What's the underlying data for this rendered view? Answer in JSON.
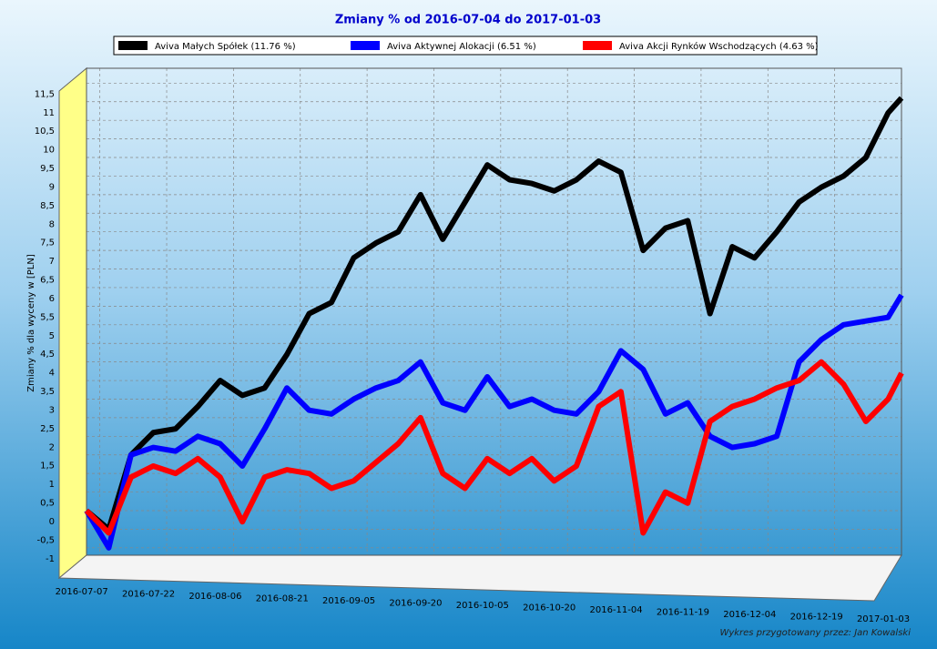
{
  "chart_data": {
    "type": "line",
    "title": "Zmiany % od 2016-07-04 do 2017-01-03",
    "y_label": "Zmiany % dla wyceny w [PLN]",
    "footnote": "Wykres przygotowany przez: Jan Kowalski",
    "x": [
      "2016-07-04",
      "2016-07-09",
      "2016-07-14",
      "2016-07-19",
      "2016-07-24",
      "2016-07-29",
      "2016-08-03",
      "2016-08-08",
      "2016-08-13",
      "2016-08-18",
      "2016-08-23",
      "2016-08-28",
      "2016-09-02",
      "2016-09-07",
      "2016-09-12",
      "2016-09-17",
      "2016-09-22",
      "2016-09-27",
      "2016-10-02",
      "2016-10-07",
      "2016-10-12",
      "2016-10-17",
      "2016-10-22",
      "2016-10-27",
      "2016-11-01",
      "2016-11-06",
      "2016-11-11",
      "2016-11-16",
      "2016-11-21",
      "2016-11-26",
      "2016-12-01",
      "2016-12-06",
      "2016-12-11",
      "2016-12-16",
      "2016-12-21",
      "2016-12-26",
      "2016-12-31",
      "2017-01-03"
    ],
    "series": [
      {
        "name": "Aviva Małych Spółek (11.76 %)",
        "color": "#000000",
        "values": [
          0,
          -0.5,
          1.5,
          2.1,
          2.2,
          2.8,
          3.5,
          3.1,
          3.3,
          4.2,
          5.3,
          5.6,
          6.8,
          7.2,
          7.5,
          8.5,
          7.3,
          8.3,
          9.3,
          8.9,
          8.8,
          8.6,
          8.9,
          9.4,
          9.1,
          7.0,
          7.6,
          7.8,
          5.3,
          7.1,
          6.8,
          7.5,
          8.3,
          8.7,
          9.0,
          9.5,
          10.7,
          11.1
        ]
      },
      {
        "name": "Aviva Aktywnej Alokacji (6.51 %)",
        "color": "#0000ff",
        "values": [
          0,
          -1,
          1.5,
          1.7,
          1.6,
          2.0,
          1.8,
          1.2,
          2.2,
          3.3,
          2.7,
          2.6,
          3.0,
          3.3,
          3.5,
          4.0,
          2.9,
          2.7,
          3.6,
          2.8,
          3.0,
          2.7,
          2.6,
          3.2,
          4.3,
          3.8,
          2.6,
          2.9,
          2.0,
          1.7,
          1.8,
          2.0,
          4.0,
          4.6,
          5.0,
          5.1,
          5.2,
          5.8
        ]
      },
      {
        "name": "Aviva Akcji Rynków Wschodzących (4.63 %)",
        "color": "#ff0000",
        "values": [
          0,
          -0.6,
          0.9,
          1.2,
          1.0,
          1.4,
          0.9,
          -0.3,
          0.9,
          1.1,
          1.0,
          0.6,
          0.8,
          1.3,
          1.8,
          2.5,
          1.0,
          0.6,
          1.4,
          1.0,
          1.4,
          0.8,
          1.2,
          2.8,
          3.2,
          -0.6,
          0.5,
          0.2,
          2.4,
          2.8,
          3.0,
          3.3,
          3.5,
          4.0,
          3.4,
          2.4,
          3.0,
          3.7
        ]
      }
    ],
    "xlim": [
      "2016-07-04",
      "2017-01-03"
    ],
    "xticks": [
      "2016-07-07",
      "2016-07-22",
      "2016-08-06",
      "2016-08-21",
      "2016-09-05",
      "2016-09-20",
      "2016-10-05",
      "2016-10-20",
      "2016-11-04",
      "2016-11-19",
      "2016-12-04",
      "2016-12-19",
      "2017-01-03"
    ],
    "ylim": [
      -1.2,
      11.9
    ],
    "yticks": [
      -1,
      {
        "value": -0.5,
        "label": "-0,5"
      },
      0,
      {
        "value": 0.5,
        "label": "0,5"
      },
      1,
      {
        "value": 1.5,
        "label": "1,5"
      },
      2,
      {
        "value": 2.5,
        "label": "2,5"
      },
      3,
      {
        "value": 3.5,
        "label": "3,5"
      },
      4,
      {
        "value": 4.5,
        "label": "4,5"
      },
      5,
      {
        "value": 5.5,
        "label": "5,5"
      },
      6,
      {
        "value": 6.5,
        "label": "6,5"
      },
      7,
      {
        "value": 7.5,
        "label": "7,5"
      },
      8,
      {
        "value": 8.5,
        "label": "8,5"
      },
      9,
      {
        "value": 9.5,
        "label": "9,5"
      },
      10,
      {
        "value": 10.5,
        "label": "10,5"
      },
      11,
      {
        "value": 11.5,
        "label": "11,5"
      }
    ],
    "grid": true
  }
}
